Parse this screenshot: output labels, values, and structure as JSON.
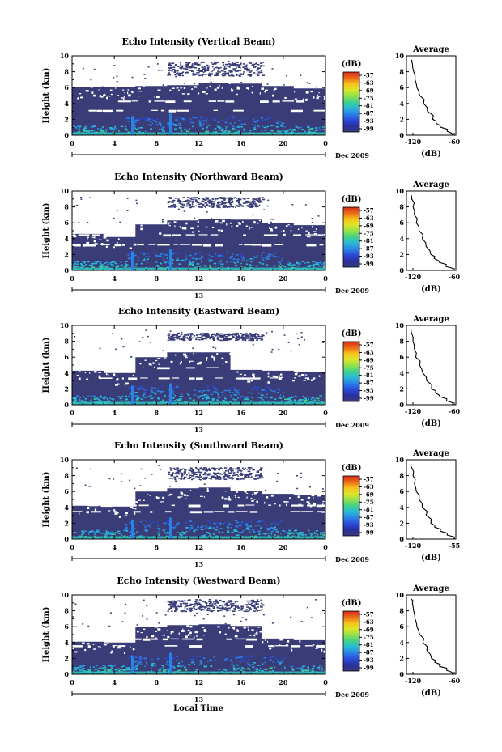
{
  "figure": {
    "common_xlabel": "Local Time",
    "date_label": "Dec 2009",
    "day_label": "13",
    "colorbar_unit": "(dB)",
    "colorbar_ticks": [
      "-57",
      "-63",
      "-69",
      "-75",
      "-81",
      "-87",
      "-93",
      "-99"
    ],
    "colorbar_colors": [
      "#d52a1c",
      "#ec6a16",
      "#f7c31b",
      "#dbe62a",
      "#92e04c",
      "#3fd18c",
      "#29b8d8",
      "#2a82e6",
      "#2a4ad8",
      "#2a2f9e",
      "#3a3a7a"
    ],
    "nodata_color": "#3a3c78"
  },
  "chart_data": [
    {
      "type": "heatmap",
      "title": "Echo Intensity (Vertical Beam)",
      "ylabel": "Height (km)",
      "xticks": [
        "0",
        "4",
        "8",
        "12",
        "16",
        "20",
        "0"
      ],
      "yticks": [
        "0",
        "2",
        "4",
        "6",
        "8",
        "10"
      ],
      "xlim": [
        0,
        24
      ],
      "ylim": [
        0,
        10
      ],
      "clim": [
        -99,
        -57
      ],
      "top_echo_km": [
        6.1,
        6.1,
        6.2,
        6.3,
        6.6,
        6.5,
        6.2,
        5.9
      ],
      "upper_layer_km": [
        7.5,
        9.3
      ],
      "profile": {
        "title": "Average",
        "xlabel": "(dB)",
        "xticks": [
          "-120",
          "-60"
        ],
        "yticks": [
          "0",
          "2",
          "4",
          "6",
          "8",
          "10"
        ],
        "height_km": [
          0,
          0.5,
          1,
          1.5,
          2,
          3,
          4,
          5,
          6,
          7,
          8,
          9,
          9.5
        ],
        "db": [
          -60,
          -68,
          -78,
          -85,
          -90,
          -98,
          -104,
          -110,
          -114,
          -117,
          -119,
          -121,
          -122
        ]
      }
    },
    {
      "type": "heatmap",
      "title": "Echo Intensity (Northward Beam)",
      "ylabel": "Height (km)",
      "xticks": [
        "0",
        "4",
        "8",
        "12",
        "16",
        "20",
        "0"
      ],
      "yticks": [
        "0",
        "2",
        "4",
        "6",
        "8",
        "10"
      ],
      "xlim": [
        0,
        24
      ],
      "ylim": [
        0,
        10
      ],
      "clim": [
        -99,
        -57
      ],
      "top_echo_km": [
        4.6,
        4.2,
        5.8,
        6.3,
        6.5,
        6.4,
        6.0,
        5.7
      ],
      "upper_layer_km": [
        8.0,
        9.3
      ],
      "profile": {
        "title": "Average",
        "xlabel": "(dB)",
        "xticks": [
          "-120",
          "-60"
        ],
        "yticks": [
          "0",
          "2",
          "4",
          "6",
          "8",
          "10"
        ],
        "height_km": [
          0,
          0.5,
          1,
          1.5,
          2,
          3,
          4,
          5,
          6,
          7,
          8,
          9,
          9.5
        ],
        "db": [
          -60,
          -70,
          -80,
          -88,
          -93,
          -100,
          -106,
          -111,
          -115,
          -118,
          -120,
          -122,
          -123
        ]
      }
    },
    {
      "type": "heatmap",
      "title": "Echo Intensity (Eastward Beam)",
      "ylabel": "Height (km)",
      "xticks": [
        "0",
        "4",
        "8",
        "12",
        "16",
        "20",
        "0"
      ],
      "yticks": [
        "0",
        "2",
        "4",
        "6",
        "8",
        "10"
      ],
      "xlim": [
        0,
        24
      ],
      "ylim": [
        0,
        10
      ],
      "clim": [
        -99,
        -57
      ],
      "top_echo_km": [
        4.3,
        4.0,
        6.0,
        6.6,
        6.6,
        4.4,
        4.3,
        4.1
      ],
      "upper_layer_km": [
        8.2,
        9.1
      ],
      "profile": {
        "title": "Average",
        "xlabel": "(dB)",
        "xticks": [
          "-120",
          "-60"
        ],
        "yticks": [
          "0",
          "2",
          "4",
          "6",
          "8",
          "10"
        ],
        "height_km": [
          0,
          0.5,
          1,
          1.5,
          2,
          3,
          4,
          5,
          6,
          7,
          8,
          9,
          9.5
        ],
        "db": [
          -60,
          -69,
          -79,
          -86,
          -92,
          -99,
          -105,
          -110,
          -116,
          -118,
          -120,
          -122,
          -123
        ]
      }
    },
    {
      "type": "heatmap",
      "title": "Echo Intensity (Southward Beam)",
      "ylabel": "Height (km)",
      "xticks": [
        "0",
        "4",
        "8",
        "12",
        "16",
        "20",
        "0"
      ],
      "yticks": [
        "0",
        "2",
        "4",
        "6",
        "8",
        "10"
      ],
      "xlim": [
        0,
        24
      ],
      "ylim": [
        0,
        10
      ],
      "clim": [
        -99,
        -57
      ],
      "top_echo_km": [
        4.2,
        4.1,
        6.0,
        6.4,
        6.5,
        6.1,
        5.7,
        5.6
      ],
      "upper_layer_km": [
        7.6,
        9.1
      ],
      "profile": {
        "title": "Average",
        "xlabel": "(dB)",
        "xticks": [
          "-120",
          "-55"
        ],
        "yticks": [
          "0",
          "2",
          "4",
          "6",
          "8",
          "10"
        ],
        "height_km": [
          0,
          0.5,
          1,
          1.5,
          2,
          3,
          4,
          5,
          6,
          7,
          8,
          9,
          9.5
        ],
        "db": [
          -58,
          -68,
          -79,
          -87,
          -93,
          -100,
          -106,
          -111,
          -115,
          -118,
          -120,
          -122,
          -123
        ]
      }
    },
    {
      "type": "heatmap",
      "title": "Echo Intensity (Westward Beam)",
      "ylabel": "Height (km)",
      "xticks": [
        "0",
        "4",
        "8",
        "12",
        "16",
        "20",
        "0"
      ],
      "yticks": [
        "0",
        "2",
        "4",
        "6",
        "8",
        "10"
      ],
      "xlim": [
        0,
        24
      ],
      "ylim": [
        0,
        10
      ],
      "clim": [
        -99,
        -57
      ],
      "top_echo_km": [
        4.1,
        4.0,
        6.0,
        6.2,
        6.3,
        6.1,
        4.5,
        4.3
      ],
      "upper_layer_km": [
        8.0,
        9.5
      ],
      "profile": {
        "title": "Average",
        "xlabel": "(dB)",
        "xticks": [
          "-120",
          "-60"
        ],
        "yticks": [
          "0",
          "2",
          "4",
          "6",
          "8",
          "10"
        ],
        "height_km": [
          0,
          0.5,
          1,
          1.5,
          2,
          3,
          4,
          5,
          6,
          7,
          8,
          9,
          9.5
        ],
        "db": [
          -60,
          -69,
          -80,
          -87,
          -92,
          -99,
          -105,
          -110,
          -114,
          -117,
          -119,
          -121,
          -123
        ]
      }
    }
  ]
}
